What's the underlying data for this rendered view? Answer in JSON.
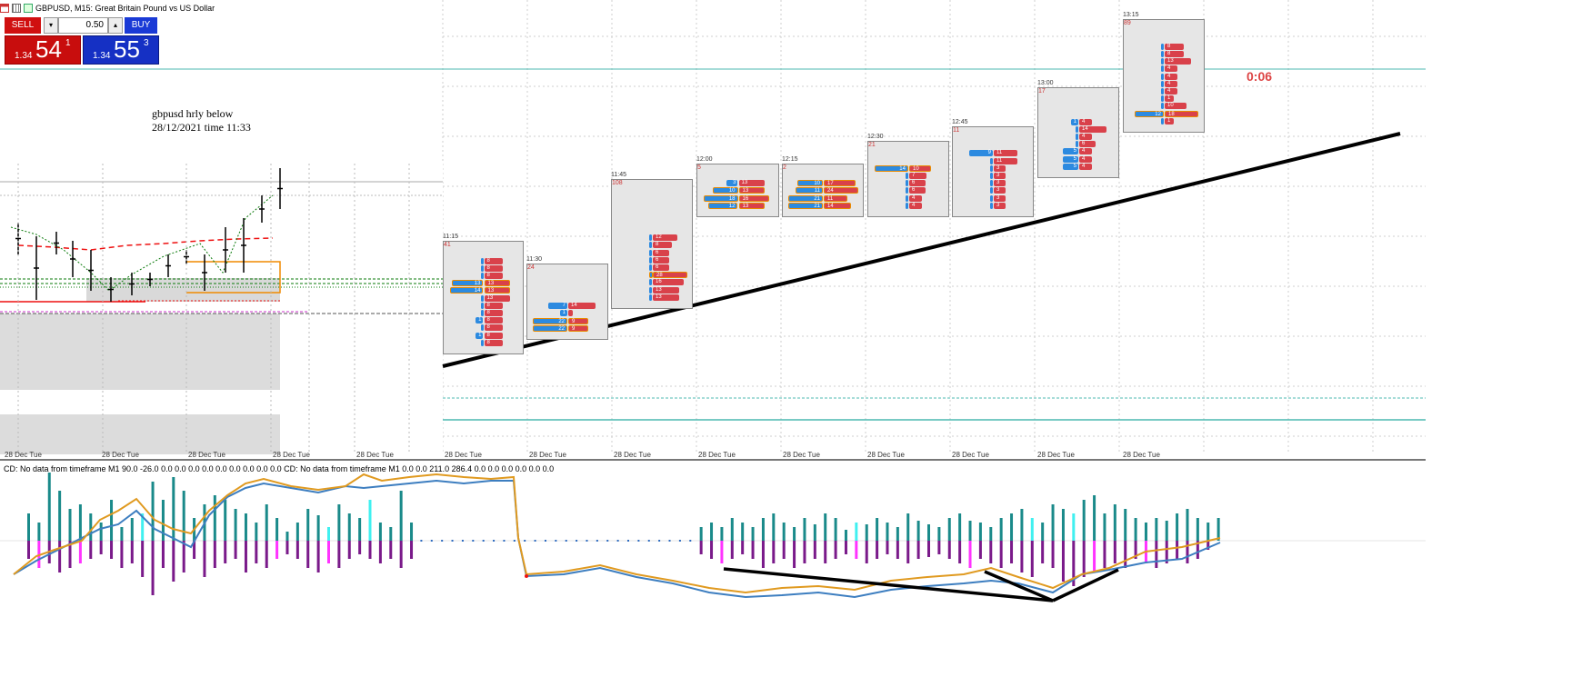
{
  "window": {
    "title": "GBPUSD, M15:  Great Britain Pound vs US Dollar",
    "icons": [
      "chart-window-icon",
      "grid-icon",
      "indicator-icon"
    ]
  },
  "trade_panel": {
    "sell_label": "SELL",
    "buy_label": "BUY",
    "lot_value": "0.50",
    "down_arrow": "▾",
    "up_arrow": "▴",
    "sell_price": {
      "prefix": "1.34",
      "big": "54",
      "sup": "1"
    },
    "buy_price": {
      "prefix": "1.34",
      "big": "55",
      "sup": "3"
    }
  },
  "note": {
    "line1": "gbpusd hrly below",
    "line2": "28/12/2021 time 11:33"
  },
  "timer": "0:06",
  "subwindow_label": "CD: No data from timeframe M1  90.0 -26.0 0.0 0.0 0.0 0.0 0.0 0.0 0.0 0.0 0.0 CD: No data from timeframe M1  0.0 0.0 211.0 286.4 0.0 0.0 0.0 0.0 0.0 0.0",
  "x_axis_label": "28 Dec Tue",
  "colors": {
    "sell": "#d01010",
    "buy": "#1a3ad6",
    "bid_bar": "#2c8ae0",
    "ask_bar": "#d9414a",
    "poc_outline": "#e88a00",
    "level_line": "#4cb8b0",
    "cd_blue": "#3d7ec0",
    "cd_orange": "#e09a20",
    "hist_teal": "#1a8a8a",
    "hist_purple": "#7a1a8a",
    "hist_cyan": "#40f0f0",
    "hist_magenta": "#ff33ff"
  },
  "footprints": [
    {
      "time": "11:15",
      "count": "41",
      "rows": [
        [
          "",
          "8"
        ],
        [
          "",
          "8"
        ],
        [
          "",
          "8"
        ],
        [
          "13",
          "13"
        ],
        [
          "14",
          "13"
        ],
        [
          "",
          "13"
        ],
        [
          "",
          "8"
        ],
        [
          "",
          "8"
        ],
        [
          "1",
          "8"
        ],
        [
          "",
          "8"
        ],
        [
          "1",
          "8"
        ],
        [
          "",
          "8"
        ]
      ]
    },
    {
      "time": "11:30",
      "count": "24",
      "rows": [
        [
          "7",
          "14"
        ],
        [
          "1",
          ""
        ],
        [
          "22",
          "9"
        ],
        [
          "22",
          "9"
        ]
      ]
    },
    {
      "time": "11:45",
      "count": "108",
      "rows": [
        [
          "",
          "12"
        ],
        [
          "",
          "8"
        ],
        [
          "",
          "6"
        ],
        [
          "",
          "6"
        ],
        [
          "",
          "6"
        ],
        [
          "",
          "28"
        ],
        [
          "",
          "16"
        ],
        [
          "",
          "13"
        ],
        [
          "",
          "13"
        ]
      ]
    },
    {
      "time": "12:00",
      "count": "5",
      "rows": [
        [
          "3",
          "13"
        ],
        [
          "10",
          "13"
        ],
        [
          "18",
          "16"
        ],
        [
          "12",
          "13"
        ]
      ]
    },
    {
      "time": "12:15",
      "count": "2",
      "rows": [
        [
          "10",
          "17"
        ],
        [
          "11",
          "24"
        ],
        [
          "21",
          "11"
        ],
        [
          "21",
          "14"
        ]
      ]
    },
    {
      "time": "12:30",
      "count": "21",
      "rows": [
        [
          "14",
          "10"
        ],
        [
          "",
          "7"
        ],
        [
          "",
          "6"
        ],
        [
          "",
          "6"
        ],
        [
          "",
          "4"
        ],
        [
          "",
          "4"
        ]
      ]
    },
    {
      "time": "12:45",
      "count": "11",
      "rows": [
        [
          "9",
          "11"
        ],
        [
          "",
          "11"
        ],
        [
          "",
          "3"
        ],
        [
          "",
          "3"
        ],
        [
          "",
          "3"
        ],
        [
          "",
          "3"
        ],
        [
          "",
          "3"
        ],
        [
          "",
          "3"
        ]
      ]
    },
    {
      "time": "13:00",
      "count": "17",
      "rows": [
        [
          "1",
          "4"
        ],
        [
          "",
          "14"
        ],
        [
          "",
          "4"
        ],
        [
          "",
          "6"
        ],
        [
          "5",
          "4"
        ],
        [
          "5",
          "4"
        ],
        [
          "5",
          "4"
        ]
      ]
    },
    {
      "time": "13:15",
      "count": "89",
      "rows": [
        [
          "",
          "8"
        ],
        [
          "",
          "8"
        ],
        [
          "",
          "13"
        ],
        [
          "",
          "4"
        ],
        [
          "",
          "4"
        ],
        [
          "",
          "4"
        ],
        [
          "",
          "4"
        ],
        [
          "",
          "1"
        ],
        [
          "",
          "10"
        ],
        [
          "12",
          "18"
        ],
        [
          "",
          "1"
        ]
      ]
    }
  ]
}
